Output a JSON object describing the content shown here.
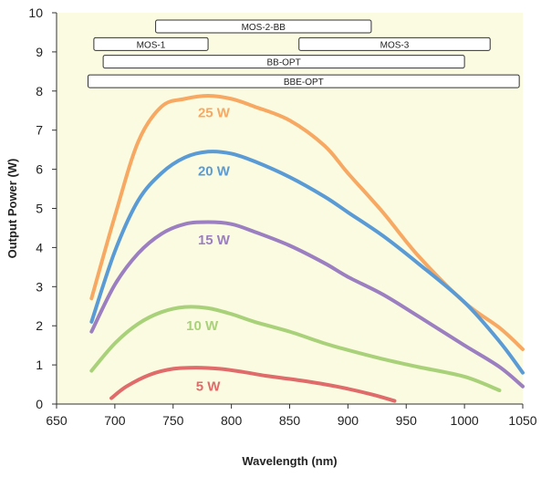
{
  "chart_data": {
    "type": "line",
    "xlabel": "Wavelength (nm)",
    "ylabel": "Output Power (W)",
    "xlim": [
      650,
      1050
    ],
    "ylim": [
      0,
      10
    ],
    "xticks": [
      650,
      700,
      750,
      800,
      850,
      900,
      950,
      1000,
      1050
    ],
    "yticks": [
      0,
      1,
      2,
      3,
      4,
      5,
      6,
      7,
      8,
      9,
      10
    ],
    "grid": false,
    "background": "#fafbe0",
    "series": [
      {
        "name": "25 W",
        "color": "#f7a862",
        "label_at": [
          785,
          7.45
        ],
        "points": [
          [
            680,
            2.7
          ],
          [
            700,
            4.8
          ],
          [
            720,
            6.7
          ],
          [
            740,
            7.6
          ],
          [
            760,
            7.8
          ],
          [
            780,
            7.88
          ],
          [
            800,
            7.8
          ],
          [
            820,
            7.6
          ],
          [
            850,
            7.25
          ],
          [
            880,
            6.6
          ],
          [
            900,
            5.9
          ],
          [
            930,
            4.9
          ],
          [
            960,
            3.8
          ],
          [
            1000,
            2.6
          ],
          [
            1030,
            1.95
          ],
          [
            1050,
            1.4
          ]
        ]
      },
      {
        "name": "20 W",
        "color": "#5b9bd5",
        "label_at": [
          785,
          5.95
        ],
        "points": [
          [
            680,
            2.1
          ],
          [
            700,
            3.9
          ],
          [
            720,
            5.2
          ],
          [
            740,
            5.9
          ],
          [
            760,
            6.3
          ],
          [
            780,
            6.45
          ],
          [
            800,
            6.4
          ],
          [
            820,
            6.2
          ],
          [
            850,
            5.8
          ],
          [
            880,
            5.3
          ],
          [
            900,
            4.9
          ],
          [
            930,
            4.3
          ],
          [
            960,
            3.6
          ],
          [
            1000,
            2.6
          ],
          [
            1030,
            1.6
          ],
          [
            1050,
            0.8
          ]
        ]
      },
      {
        "name": "15 W",
        "color": "#9b7fc0",
        "label_at": [
          785,
          4.2
        ],
        "points": [
          [
            680,
            1.85
          ],
          [
            700,
            3.05
          ],
          [
            720,
            3.85
          ],
          [
            740,
            4.35
          ],
          [
            760,
            4.6
          ],
          [
            780,
            4.65
          ],
          [
            800,
            4.6
          ],
          [
            820,
            4.4
          ],
          [
            850,
            4.05
          ],
          [
            880,
            3.6
          ],
          [
            900,
            3.25
          ],
          [
            930,
            2.8
          ],
          [
            960,
            2.25
          ],
          [
            1000,
            1.5
          ],
          [
            1030,
            0.95
          ],
          [
            1050,
            0.45
          ]
        ]
      },
      {
        "name": "10 W",
        "color": "#a9d17a",
        "label_at": [
          775,
          2.0
        ],
        "points": [
          [
            680,
            0.85
          ],
          [
            700,
            1.55
          ],
          [
            720,
            2.05
          ],
          [
            740,
            2.35
          ],
          [
            760,
            2.48
          ],
          [
            780,
            2.45
          ],
          [
            800,
            2.3
          ],
          [
            820,
            2.1
          ],
          [
            850,
            1.85
          ],
          [
            880,
            1.55
          ],
          [
            900,
            1.38
          ],
          [
            930,
            1.15
          ],
          [
            960,
            0.95
          ],
          [
            1000,
            0.7
          ],
          [
            1030,
            0.35
          ]
        ]
      },
      {
        "name": "5 W",
        "color": "#e06b6b",
        "label_at": [
          780,
          0.45
        ],
        "points": [
          [
            697,
            0.15
          ],
          [
            710,
            0.45
          ],
          [
            730,
            0.75
          ],
          [
            750,
            0.9
          ],
          [
            770,
            0.93
          ],
          [
            790,
            0.9
          ],
          [
            810,
            0.82
          ],
          [
            830,
            0.72
          ],
          [
            860,
            0.6
          ],
          [
            890,
            0.45
          ],
          [
            920,
            0.25
          ],
          [
            940,
            0.08
          ]
        ]
      }
    ],
    "ranges": [
      {
        "name": "MOS-2-BB",
        "start": 735,
        "end": 920,
        "y": 9.65
      },
      {
        "name": "MOS-1",
        "start": 682,
        "end": 780,
        "y": 9.2
      },
      {
        "name": "MOS-3",
        "start": 858,
        "end": 1022,
        "y": 9.2
      },
      {
        "name": "BB-OPT",
        "start": 690,
        "end": 1000,
        "y": 8.75
      },
      {
        "name": "BBE-OPT",
        "start": 677,
        "end": 1047,
        "y": 8.25
      }
    ]
  }
}
